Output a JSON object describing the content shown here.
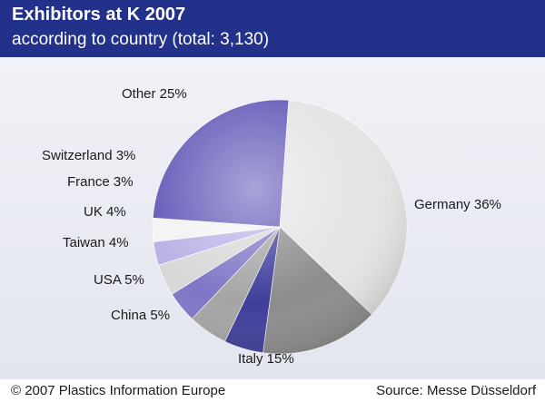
{
  "header": {
    "title": "Exhibitors at K 2007",
    "subtitle": "according to country (total: 3,130)"
  },
  "chart_data": {
    "type": "pie",
    "title": "Exhibitors at K 2007",
    "subtitle": "according to country (total: 3,130)",
    "slices": [
      {
        "name": "Germany",
        "value": 36,
        "label": "Germany 36%",
        "color": "#e4e4e4"
      },
      {
        "name": "Italy",
        "value": 15,
        "label": "Italy 15%",
        "color": "#8c8c8c"
      },
      {
        "name": "China",
        "value": 5,
        "label": "China 5%",
        "color": "#3e3e9a"
      },
      {
        "name": "USA",
        "value": 5,
        "label": "USA 5%",
        "color": "#a5a5a5"
      },
      {
        "name": "Taiwan",
        "value": 4,
        "label": "Taiwan 4%",
        "color": "#7e76c6"
      },
      {
        "name": "UK",
        "value": 4,
        "label": "UK 4%",
        "color": "#d8d8d8"
      },
      {
        "name": "France",
        "value": 3,
        "label": "France 3%",
        "color": "#b8b2e6"
      },
      {
        "name": "Switzerland",
        "value": 3,
        "label": "Switzerland 3%",
        "color": "#f3f3f3"
      },
      {
        "name": "Other",
        "value": 25,
        "label": "Other 25%",
        "color": "#6259b8"
      }
    ],
    "legend": "none"
  },
  "footer": {
    "copyright": "© 2007 Plastics Information Europe",
    "source": "Source: Messe Düsseldorf"
  }
}
